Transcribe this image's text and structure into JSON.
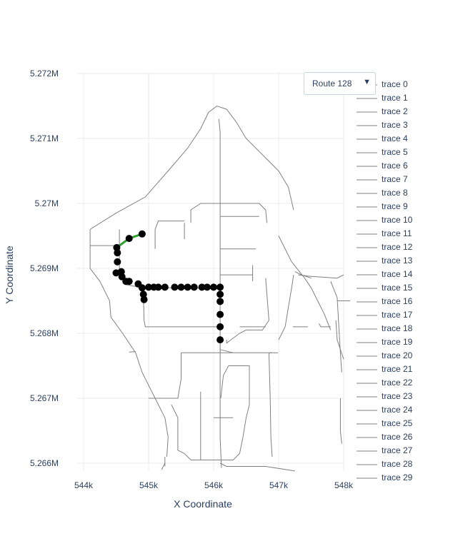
{
  "chart_data": {
    "type": "scatter",
    "title": "",
    "xlabel": "X Coordinate",
    "ylabel": "Y Coordinate",
    "xlim": [
      543900,
      548000
    ],
    "ylim": [
      5265800,
      5272000
    ],
    "x_ticks": [
      {
        "value": 544000,
        "label": "544k"
      },
      {
        "value": 545000,
        "label": "545k"
      },
      {
        "value": 546000,
        "label": "546k"
      },
      {
        "value": 547000,
        "label": "547k"
      },
      {
        "value": 548000,
        "label": "548k"
      }
    ],
    "y_ticks": [
      {
        "value": 5266000,
        "label": "5.266M"
      },
      {
        "value": 5267000,
        "label": "5.267M"
      },
      {
        "value": 5268000,
        "label": "5.268M"
      },
      {
        "value": 5269000,
        "label": "5.269M"
      },
      {
        "value": 5270000,
        "label": "5.27M"
      },
      {
        "value": 5271000,
        "label": "5.271M"
      },
      {
        "value": 5272000,
        "label": "5.272M"
      }
    ],
    "grid": true,
    "legend_position": "right",
    "colors": {
      "street": "#808080",
      "route_line": "#2ca02c",
      "stop": "#000000",
      "grid": "#ebebeb"
    },
    "streets": [
      [
        [
          544100,
          5269600
        ],
        [
          544500,
          5269850
        ],
        [
          544950,
          5270100
        ],
        [
          545300,
          5270500
        ],
        [
          545600,
          5270850
        ],
        [
          545800,
          5271150
        ],
        [
          545920,
          5271400
        ],
        [
          546050,
          5271500
        ],
        [
          546200,
          5271450
        ],
        [
          546350,
          5271250
        ],
        [
          546500,
          5271000
        ],
        [
          546750,
          5270750
        ],
        [
          547000,
          5270500
        ],
        [
          547150,
          5270250
        ],
        [
          547230,
          5269900
        ]
      ],
      [
        [
          546080,
          5271300
        ],
        [
          546100,
          5271100
        ],
        [
          546100,
          5270100
        ],
        [
          546100,
          5269000
        ],
        [
          546100,
          5267900
        ],
        [
          546100,
          5266400
        ],
        [
          546120,
          5265930
        ]
      ],
      [
        [
          544100,
          5269600
        ],
        [
          544100,
          5269350
        ],
        [
          544100,
          5269000
        ],
        [
          544250,
          5268800
        ],
        [
          544400,
          5268500
        ],
        [
          544420,
          5268250
        ],
        [
          544600,
          5268000
        ],
        [
          544800,
          5267700
        ],
        [
          544900,
          5267400
        ],
        [
          545100,
          5267000
        ],
        [
          545250,
          5266700
        ],
        [
          545300,
          5266400
        ],
        [
          545280,
          5266100
        ]
      ],
      [
        [
          544100,
          5269350
        ],
        [
          544550,
          5269350
        ]
      ],
      [
        [
          544550,
          5269600
        ],
        [
          544550,
          5269350
        ],
        [
          544550,
          5269000
        ],
        [
          544650,
          5268750
        ],
        [
          544900,
          5268700
        ]
      ],
      [
        [
          544900,
          5268700
        ],
        [
          546100,
          5268700
        ]
      ],
      [
        [
          544920,
          5268700
        ],
        [
          544920,
          5268600
        ],
        [
          544930,
          5268200
        ],
        [
          544950,
          5268100
        ],
        [
          545400,
          5268100
        ],
        [
          545900,
          5268100
        ],
        [
          546100,
          5268100
        ]
      ],
      [
        [
          545650,
          5269700
        ],
        [
          545650,
          5269900
        ],
        [
          545800,
          5270000
        ],
        [
          546700,
          5270000
        ],
        [
          546800,
          5269900
        ],
        [
          546820,
          5269700
        ]
      ],
      [
        [
          545550,
          5269700
        ],
        [
          545550,
          5269450
        ]
      ],
      [
        [
          545100,
          5269300
        ],
        [
          545100,
          5269600
        ],
        [
          545150,
          5269730
        ],
        [
          545550,
          5269730
        ]
      ],
      [
        [
          546100,
          5269800
        ],
        [
          546700,
          5269800
        ]
      ],
      [
        [
          546100,
          5269300
        ],
        [
          546650,
          5269300
        ]
      ],
      [
        [
          546100,
          5268900
        ],
        [
          546600,
          5268900
        ]
      ],
      [
        [
          546600,
          5269050
        ],
        [
          546600,
          5268800
        ]
      ],
      [
        [
          546800,
          5268850
        ],
        [
          546850,
          5268200
        ],
        [
          546750,
          5268050
        ],
        [
          546500,
          5268050
        ],
        [
          546400,
          5268000
        ],
        [
          546200,
          5267850
        ],
        [
          546200,
          5267900
        ]
      ],
      [
        [
          546400,
          5268100
        ],
        [
          546800,
          5268100
        ]
      ],
      [
        [
          546100,
          5267900
        ],
        [
          546100,
          5267700
        ]
      ],
      [
        [
          545500,
          5267700
        ],
        [
          546900,
          5267700
        ]
      ],
      [
        [
          545500,
          5267700
        ],
        [
          545500,
          5267300
        ],
        [
          545450,
          5267000
        ],
        [
          545300,
          5267000
        ],
        [
          545000,
          5267000
        ]
      ],
      [
        [
          546850,
          5267700
        ],
        [
          546870,
          5267000
        ],
        [
          546880,
          5266400
        ],
        [
          546900,
          5266100
        ]
      ],
      [
        [
          546230,
          5267500
        ],
        [
          546550,
          5267500
        ],
        [
          546550,
          5266900
        ],
        [
          546500,
          5266700
        ],
        [
          546450,
          5266400
        ],
        [
          546400,
          5266150
        ],
        [
          546300,
          5266050
        ],
        [
          546000,
          5266050
        ],
        [
          545650,
          5266050
        ],
        [
          545550,
          5266150
        ],
        [
          545450,
          5266200
        ],
        [
          545450,
          5266700
        ],
        [
          545350,
          5266900
        ]
      ],
      [
        [
          546230,
          5267500
        ],
        [
          546150,
          5267350
        ],
        [
          546110,
          5267000
        ]
      ],
      [
        [
          546000,
          5266700
        ],
        [
          546300,
          5266700
        ]
      ],
      [
        [
          545800,
          5267100
        ],
        [
          545800,
          5266400
        ]
      ],
      [
        [
          545800,
          5266400
        ],
        [
          545800,
          5266050
        ]
      ],
      [
        [
          546100,
          5266000
        ],
        [
          546200,
          5265950
        ],
        [
          546800,
          5265950
        ],
        [
          547250,
          5265880
        ]
      ],
      [
        [
          547000,
          5269500
        ],
        [
          547200,
          5269100
        ],
        [
          547400,
          5268850
        ],
        [
          547500,
          5268700
        ],
        [
          547600,
          5268500
        ],
        [
          547700,
          5268300
        ],
        [
          547800,
          5268050
        ]
      ],
      [
        [
          547300,
          5268900
        ],
        [
          547450,
          5268880
        ],
        [
          547900,
          5268850
        ],
        [
          548000,
          5268900
        ]
      ],
      [
        [
          547230,
          5268900
        ],
        [
          547200,
          5268700
        ],
        [
          547150,
          5268400
        ],
        [
          547100,
          5268100
        ],
        [
          547000,
          5267900
        ]
      ],
      [
        [
          547800,
          5268800
        ],
        [
          547900,
          5268550
        ],
        [
          547950,
          5267700
        ],
        [
          547970,
          5267400
        ]
      ],
      [
        [
          547620,
          5268150
        ],
        [
          547650,
          5268100
        ],
        [
          547800,
          5268100
        ]
      ],
      [
        [
          547220,
          5268100
        ],
        [
          547450,
          5268100
        ]
      ],
      [
        [
          547880,
          5268200
        ],
        [
          547900,
          5267900
        ],
        [
          548000,
          5267600
        ]
      ],
      [
        [
          547900,
          5268500
        ],
        [
          548100,
          5268500
        ]
      ],
      [
        [
          546860,
          5267700
        ],
        [
          546990,
          5267700
        ]
      ],
      [
        [
          546100,
          5267750
        ],
        [
          546300,
          5267700
        ]
      ],
      [
        [
          544700,
          5267710
        ],
        [
          544800,
          5267720
        ]
      ],
      [
        [
          545250,
          5266100
        ],
        [
          545250,
          5265950
        ]
      ],
      [
        [
          545250,
          5266000
        ],
        [
          545200,
          5265900
        ]
      ],
      [
        [
          547950,
          5267000
        ],
        [
          547950,
          5266500
        ],
        [
          547970,
          5266300
        ]
      ],
      [
        [
          547500,
          5268850
        ],
        [
          547350,
          5268900
        ],
        [
          547250,
          5268950
        ]
      ]
    ],
    "route": {
      "name": "Route 128",
      "line": [
        [
          544900,
          5269530
        ],
        [
          544700,
          5269460
        ],
        [
          544510,
          5269320
        ],
        [
          544530,
          5269260
        ],
        [
          544520,
          5269240
        ]
      ],
      "stops": [
        [
          544900,
          5269530
        ],
        [
          544700,
          5269460
        ],
        [
          544510,
          5269320
        ],
        [
          544520,
          5269240
        ],
        [
          544520,
          5269100
        ],
        [
          544500,
          5268930
        ],
        [
          544580,
          5268950
        ],
        [
          544590,
          5268870
        ],
        [
          544650,
          5268800
        ],
        [
          544700,
          5268800
        ],
        [
          544840,
          5268760
        ],
        [
          544900,
          5268700
        ],
        [
          544920,
          5268600
        ],
        [
          544930,
          5268520
        ],
        [
          545000,
          5268710
        ],
        [
          545080,
          5268710
        ],
        [
          545150,
          5268710
        ],
        [
          545250,
          5268710
        ],
        [
          545400,
          5268710
        ],
        [
          545500,
          5268710
        ],
        [
          545600,
          5268710
        ],
        [
          545700,
          5268710
        ],
        [
          545820,
          5268710
        ],
        [
          545900,
          5268710
        ],
        [
          546000,
          5268710
        ],
        [
          546100,
          5268710
        ],
        [
          546100,
          5268600
        ],
        [
          546100,
          5268490
        ],
        [
          546100,
          5268290
        ],
        [
          546100,
          5268100
        ],
        [
          546100,
          5267900
        ]
      ]
    },
    "legend": [
      "trace 0",
      "trace 1",
      "trace 2",
      "trace 3",
      "trace 4",
      "trace 5",
      "trace 6",
      "trace 7",
      "trace 8",
      "trace 9",
      "trace 10",
      "trace 11",
      "trace 12",
      "trace 13",
      "trace 14",
      "trace 15",
      "trace 16",
      "trace 17",
      "trace 18",
      "trace 19",
      "trace 20",
      "trace 21",
      "trace 22",
      "trace 23",
      "trace 24",
      "trace 25",
      "trace 26",
      "trace 27",
      "trace 28",
      "trace 29"
    ]
  },
  "dropdown": {
    "selected": "Route 128",
    "arrow_icon": "triangle-down-icon"
  }
}
